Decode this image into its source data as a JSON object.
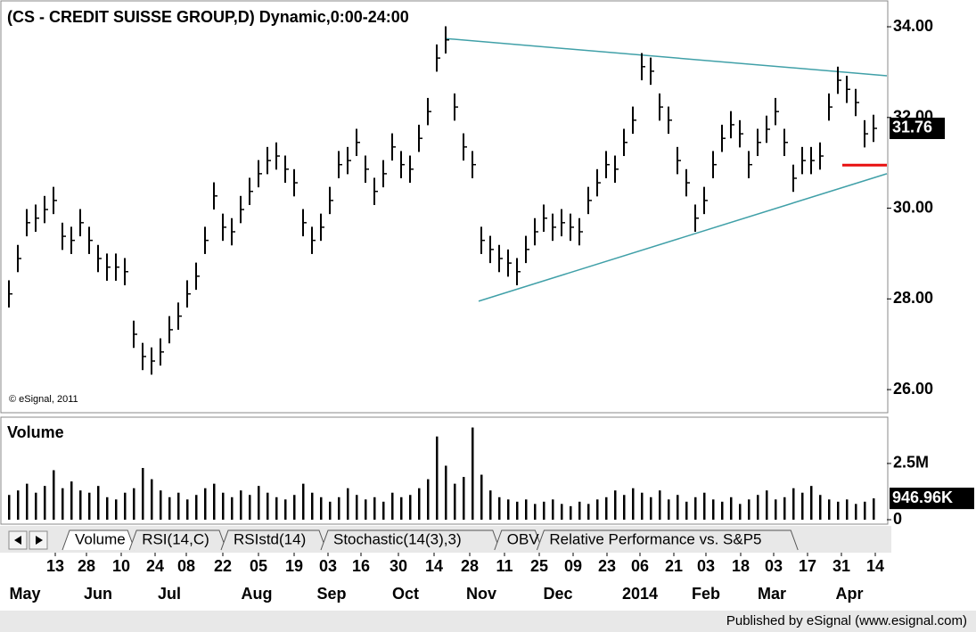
{
  "chart_data": [
    {
      "type": "ohlc",
      "title": "(CS - CREDIT SUISSE GROUP,D) Dynamic,0:00-24:00",
      "copyright": "© eSignal, 2011",
      "categories": [
        null,
        null,
        null,
        null,
        null,
        null,
        null,
        null,
        null,
        null,
        null,
        null,
        null,
        null,
        null,
        null,
        null,
        null,
        null,
        null,
        null,
        null,
        null,
        null,
        null,
        null,
        null,
        null,
        null,
        null,
        null,
        null,
        null,
        null,
        null,
        null,
        null,
        null,
        null,
        null,
        null,
        null,
        null,
        null,
        null,
        null,
        null,
        null,
        null,
        null,
        null,
        null,
        null,
        null,
        null,
        null,
        null,
        null,
        null,
        null,
        null,
        null,
        null,
        null,
        null,
        null,
        null,
        null,
        null,
        null,
        null,
        null,
        null,
        null,
        null,
        null,
        null,
        null,
        null,
        null,
        null,
        null,
        null,
        null,
        null,
        null,
        null,
        null,
        null,
        null,
        null,
        null,
        null,
        null,
        null,
        null,
        null,
        null
      ],
      "high": [
        28.41,
        29.19,
        29.98,
        30.08,
        30.27,
        30.47,
        29.68,
        29.59,
        29.98,
        29.59,
        29.19,
        29.0,
        29.0,
        28.9,
        27.52,
        27.03,
        26.93,
        27.13,
        27.62,
        27.92,
        28.41,
        28.8,
        29.59,
        30.57,
        29.88,
        29.78,
        30.27,
        30.67,
        31.06,
        31.35,
        31.45,
        31.16,
        30.86,
        29.98,
        29.59,
        29.88,
        30.47,
        31.26,
        31.35,
        31.75,
        31.16,
        30.67,
        31.06,
        31.65,
        31.26,
        31.16,
        31.84,
        32.43,
        33.61,
        34.01,
        32.53,
        31.65,
        31.26,
        29.59,
        29.39,
        29.19,
        29.09,
        28.9,
        29.39,
        29.78,
        30.08,
        29.88,
        29.98,
        29.88,
        29.78,
        30.47,
        30.86,
        31.26,
        31.16,
        31.75,
        32.24,
        33.42,
        33.32,
        32.53,
        32.24,
        31.35,
        30.86,
        30.08,
        30.47,
        31.26,
        31.84,
        32.14,
        31.94,
        31.26,
        31.75,
        32.04,
        32.43,
        31.75,
        30.96,
        31.35,
        31.35,
        31.45,
        32.53,
        33.12,
        32.92,
        32.63,
        31.94,
        32.06
      ],
      "low": [
        27.81,
        28.59,
        29.38,
        29.48,
        29.67,
        29.87,
        29.08,
        28.99,
        29.38,
        28.99,
        28.59,
        28.4,
        28.4,
        28.3,
        26.92,
        26.43,
        26.33,
        26.53,
        27.02,
        27.32,
        27.81,
        28.2,
        28.99,
        29.97,
        29.28,
        29.18,
        29.67,
        30.07,
        30.46,
        30.75,
        30.85,
        30.56,
        30.26,
        29.38,
        28.99,
        29.28,
        29.87,
        30.66,
        30.75,
        31.15,
        30.56,
        30.07,
        30.46,
        31.05,
        30.66,
        30.56,
        31.24,
        31.83,
        33.01,
        33.41,
        31.93,
        31.05,
        30.66,
        28.99,
        28.79,
        28.59,
        28.49,
        28.3,
        28.79,
        29.18,
        29.48,
        29.28,
        29.38,
        29.28,
        29.18,
        29.87,
        30.26,
        30.66,
        30.56,
        31.15,
        31.64,
        32.82,
        32.72,
        31.93,
        31.64,
        30.75,
        30.26,
        29.48,
        29.87,
        30.66,
        31.24,
        31.54,
        31.34,
        30.66,
        31.15,
        31.44,
        31.83,
        31.15,
        30.36,
        30.75,
        30.75,
        30.85,
        31.93,
        32.52,
        32.32,
        32.03,
        31.34,
        31.46
      ],
      "close": [
        28.11,
        28.89,
        29.68,
        29.78,
        29.97,
        30.17,
        29.38,
        29.29,
        29.68,
        29.29,
        28.89,
        28.7,
        28.7,
        28.6,
        27.22,
        26.73,
        26.63,
        26.83,
        27.32,
        27.62,
        28.11,
        28.5,
        29.29,
        30.27,
        29.58,
        29.48,
        29.97,
        30.37,
        30.76,
        31.05,
        31.15,
        30.86,
        30.56,
        29.68,
        29.29,
        29.58,
        30.17,
        30.96,
        31.05,
        31.45,
        30.86,
        30.37,
        30.76,
        31.35,
        30.96,
        30.86,
        31.54,
        32.13,
        33.31,
        33.71,
        32.23,
        31.35,
        30.96,
        29.29,
        29.09,
        28.89,
        28.79,
        28.6,
        29.09,
        29.48,
        29.78,
        29.58,
        29.68,
        29.58,
        29.48,
        30.17,
        30.56,
        30.96,
        30.86,
        31.45,
        31.94,
        33.12,
        33.02,
        32.23,
        31.94,
        31.05,
        30.56,
        29.78,
        30.17,
        30.96,
        31.54,
        31.84,
        31.64,
        30.96,
        31.45,
        31.74,
        32.13,
        31.45,
        30.66,
        31.05,
        31.05,
        31.15,
        32.23,
        32.82,
        32.62,
        32.33,
        31.64,
        31.76
      ],
      "color": "#000000",
      "xlim": [
        -0.2,
        98.5
      ],
      "ylim": [
        25.51,
        34.59
      ],
      "yticks": [
        {
          "value": 26,
          "label": "26.00"
        },
        {
          "value": 28,
          "label": "28.00"
        },
        {
          "value": 30,
          "label": "30.00"
        },
        {
          "value": 32,
          "label": "32.00"
        },
        {
          "value": 34,
          "label": "34.00"
        }
      ],
      "last_price": 31.76,
      "lines": [
        {
          "x": [
            49,
            98.5
          ],
          "y": [
            33.74,
            32.92
          ],
          "color": "#40a0a8"
        },
        {
          "x": [
            52.7,
            98.5
          ],
          "y": [
            27.95,
            30.76
          ],
          "color": "#40a0a8"
        },
        {
          "x": [
            93.5,
            98.5
          ],
          "y": [
            30.95,
            30.95
          ],
          "color": "#e81010"
        }
      ]
    },
    {
      "type": "bar",
      "title": "Volume",
      "color": "#000000",
      "values": [
        1100000,
        1300000,
        1600000,
        1200000,
        1500000,
        2200000,
        1400000,
        1700000,
        1300000,
        1200000,
        1500000,
        1000000,
        900000,
        1200000,
        1400000,
        2300000,
        1800000,
        1300000,
        1000000,
        1200000,
        900000,
        1100000,
        1400000,
        1600000,
        1200000,
        1000000,
        1300000,
        1100000,
        1500000,
        1200000,
        1000000,
        900000,
        1100000,
        1600000,
        1200000,
        1000000,
        800000,
        1000000,
        1400000,
        1100000,
        900000,
        1000000,
        800000,
        1200000,
        1000000,
        1100000,
        1400000,
        1800000,
        3700000,
        2400000,
        1600000,
        1900000,
        4100000,
        2000000,
        1300000,
        1000000,
        900000,
        800000,
        900000,
        700000,
        800000,
        900000,
        700000,
        600000,
        800000,
        700000,
        900000,
        1000000,
        1300000,
        1100000,
        1400000,
        1200000,
        1000000,
        1300000,
        900000,
        1100000,
        800000,
        1000000,
        1200000,
        900000,
        800000,
        1000000,
        700000,
        900000,
        1100000,
        1300000,
        900000,
        1000000,
        1400000,
        1200000,
        1500000,
        1100000,
        900000,
        800000,
        900000,
        700000,
        800000,
        946960
      ],
      "xlim": [
        -0.2,
        98.5
      ],
      "ylim": [
        0,
        4480000
      ],
      "yticks": [
        {
          "value": 0,
          "label": "0"
        },
        {
          "value": 2500000,
          "label": "2.5M"
        }
      ],
      "last_volume": {
        "value": 946960,
        "label": "946.96K"
      },
      "xticks": [
        {
          "value": 5.2,
          "label": "13"
        },
        {
          "value": 8.7,
          "label": "28"
        },
        {
          "value": 12.6,
          "label": "10"
        },
        {
          "value": 16.4,
          "label": "24"
        },
        {
          "value": 19.9,
          "label": "08"
        },
        {
          "value": 24,
          "label": "22"
        },
        {
          "value": 28,
          "label": "05"
        },
        {
          "value": 32,
          "label": "19"
        },
        {
          "value": 35.8,
          "label": "03"
        },
        {
          "value": 39.5,
          "label": "16"
        },
        {
          "value": 43.7,
          "label": "30"
        },
        {
          "value": 47.7,
          "label": "14"
        },
        {
          "value": 51.7,
          "label": "28"
        },
        {
          "value": 55.6,
          "label": "11"
        },
        {
          "value": 59.5,
          "label": "25"
        },
        {
          "value": 63.3,
          "label": "09"
        },
        {
          "value": 67.1,
          "label": "23"
        },
        {
          "value": 70.8,
          "label": "06"
        },
        {
          "value": 74.6,
          "label": "21"
        },
        {
          "value": 78.2,
          "label": "03"
        },
        {
          "value": 82.1,
          "label": "18"
        },
        {
          "value": 85.8,
          "label": "03"
        },
        {
          "value": 89.6,
          "label": "17"
        },
        {
          "value": 93.4,
          "label": "31"
        },
        {
          "value": 97.2,
          "label": "14"
        }
      ],
      "month_ticks": [
        {
          "value": 1.8,
          "label": "May"
        },
        {
          "value": 10,
          "label": "Jun"
        },
        {
          "value": 18,
          "label": "Jul"
        },
        {
          "value": 27.8,
          "label": "Aug"
        },
        {
          "value": 36.2,
          "label": "Sep"
        },
        {
          "value": 44.5,
          "label": "Oct"
        },
        {
          "value": 53,
          "label": "Nov"
        },
        {
          "value": 61.6,
          "label": "Dec"
        },
        {
          "value": 70.8,
          "label": "2014"
        },
        {
          "value": 78.2,
          "label": "Feb"
        },
        {
          "value": 85.6,
          "label": "Mar"
        },
        {
          "value": 94.3,
          "label": "Apr"
        }
      ]
    }
  ],
  "tabs": [
    "Volume",
    "RSI(14,C)",
    "RSIstd(14)",
    "Stochastic(14(3),3)",
    "OBV",
    "Relative Performance vs. S&P5"
  ],
  "footer": "Published by eSignal (www.esignal.com)"
}
